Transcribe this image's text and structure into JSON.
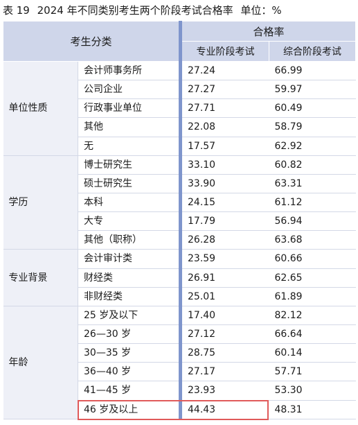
{
  "caption": {
    "label": "表 19",
    "title": "2024 年不同类别考生两个阶段考试合格率",
    "unit": "单位：%"
  },
  "header": {
    "category": "考生分类",
    "rate": "合格率",
    "col1": "专业阶段考试",
    "col2": "综合阶段考试"
  },
  "groups": [
    {
      "name": "单位性质",
      "rows": [
        {
          "sub": "会计师事务所",
          "pro": "27.24",
          "comp": "66.99"
        },
        {
          "sub": "公司企业",
          "pro": "27.27",
          "comp": "59.97"
        },
        {
          "sub": "行政事业单位",
          "pro": "27.71",
          "comp": "60.49"
        },
        {
          "sub": "其他",
          "pro": "22.08",
          "comp": "58.79"
        },
        {
          "sub": "无",
          "pro": "17.57",
          "comp": "62.92"
        }
      ]
    },
    {
      "name": "学历",
      "rows": [
        {
          "sub": "博士研究生",
          "pro": "33.10",
          "comp": "60.82"
        },
        {
          "sub": "硕士研究生",
          "pro": "33.90",
          "comp": "63.31"
        },
        {
          "sub": "本科",
          "pro": "24.15",
          "comp": "61.12"
        },
        {
          "sub": "大专",
          "pro": "17.79",
          "comp": "56.94"
        },
        {
          "sub": "其他（职称）",
          "pro": "26.28",
          "comp": "63.68"
        }
      ]
    },
    {
      "name": "专业背景",
      "rows": [
        {
          "sub": "会计审计类",
          "pro": "23.59",
          "comp": "60.66"
        },
        {
          "sub": "财经类",
          "pro": "26.91",
          "comp": "62.65"
        },
        {
          "sub": "非财经类",
          "pro": "25.01",
          "comp": "61.89"
        }
      ]
    },
    {
      "name": "年龄",
      "rows": [
        {
          "sub": "25 岁及以下",
          "pro": "17.40",
          "comp": "82.12"
        },
        {
          "sub": "26—30 岁",
          "pro": "27.12",
          "comp": "66.64"
        },
        {
          "sub": "30—35 岁",
          "pro": "28.75",
          "comp": "60.14"
        },
        {
          "sub": "36—40 岁",
          "pro": "27.17",
          "comp": "57.71"
        },
        {
          "sub": "41—45 岁",
          "pro": "23.93",
          "comp": "53.30"
        },
        {
          "sub": "46 岁及以上",
          "pro": "44.43",
          "comp": "48.31"
        }
      ]
    }
  ],
  "colors": {
    "header_bg": "#cfd6ea",
    "group_bg": "#eef0f7",
    "divider": "#7f95cc",
    "highlight": "#e05a5a"
  }
}
